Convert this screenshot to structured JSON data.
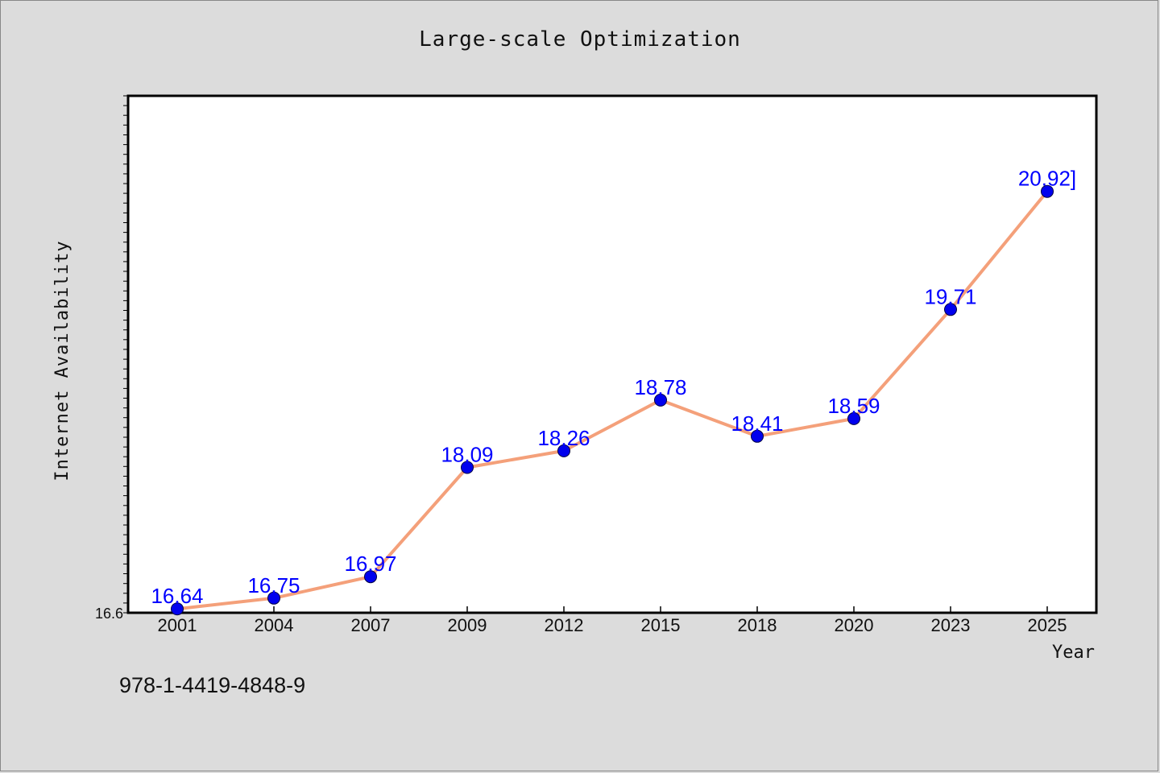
{
  "title": "Large-scale Optimization",
  "footer": "978-1-4419-4848-9",
  "colors": {
    "background": "#dcdcdc",
    "plot_background": "#ffffff",
    "line": "#f4a07a",
    "marker": "#0000ee",
    "data_label": "#0000ff"
  },
  "chart_data": {
    "type": "line",
    "title": "Large-scale Optimization",
    "xlabel": "Year",
    "ylabel": "Internet Availability",
    "categories": [
      "2001",
      "2004",
      "2007",
      "2009",
      "2012",
      "2015",
      "2018",
      "2020",
      "2023",
      "2025"
    ],
    "series": [
      {
        "values": [
          16.64,
          16.75,
          16.97,
          18.09,
          18.26,
          18.78,
          18.41,
          18.59,
          19.71,
          20.92
        ]
      }
    ],
    "data_labels": [
      "16.64",
      "16.75",
      "16.97",
      "18.09",
      "18.26",
      "18.78",
      "18.41",
      "18.59",
      "19.71",
      "20.92]"
    ],
    "y_tick_labels": [
      "16.6"
    ],
    "ylim": [
      16.6,
      21.9
    ],
    "grid": false,
    "legend": "none"
  }
}
